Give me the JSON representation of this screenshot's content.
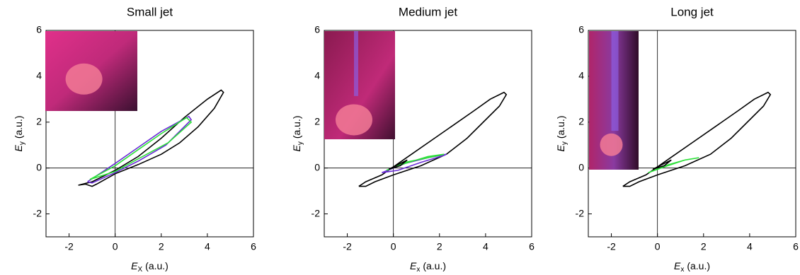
{
  "chart_data": [
    {
      "type": "line",
      "title": "Small jet",
      "xlabel": {
        "symbol": "E",
        "subscript": "X",
        "unit": "(a.u.)"
      },
      "ylabel": {
        "symbol": "E",
        "subscript": "y",
        "unit": "(a.u.)"
      },
      "xlim": [
        -3,
        6
      ],
      "ylim": [
        -3,
        6
      ],
      "xticks": [
        -2,
        0,
        2,
        4,
        6
      ],
      "yticks": [
        -2,
        0,
        2,
        4,
        6
      ],
      "series": [
        {
          "color": "#000000",
          "x": [
            -1.6,
            -1,
            0,
            1,
            2,
            3,
            4,
            4.6,
            4.7,
            4.3,
            3.6,
            2.8,
            2,
            1,
            0,
            -0.8,
            -1,
            -1.3,
            -1.6
          ],
          "values": [
            -0.75,
            -0.6,
            -0.1,
            0.5,
            1.3,
            2.2,
            3.0,
            3.4,
            3.3,
            2.6,
            1.8,
            1.1,
            0.6,
            0.15,
            -0.25,
            -0.7,
            -0.8,
            -0.7,
            -0.75
          ]
        },
        {
          "color": "#6a2bd6",
          "x": [
            -1.2,
            0,
            1,
            2,
            3.2,
            3.3,
            2.2,
            1,
            0,
            -1,
            -1.2
          ],
          "values": [
            -0.6,
            0.2,
            0.9,
            1.6,
            2.25,
            2.1,
            1.0,
            0.3,
            -0.2,
            -0.65,
            -0.6
          ]
        },
        {
          "color": "#2ee03a",
          "x": [
            -1.1,
            0,
            1,
            2,
            3.1,
            3.3,
            2.3,
            1,
            0,
            -1.1
          ],
          "values": [
            -0.5,
            0.1,
            0.8,
            1.5,
            2.2,
            2.0,
            1.1,
            0.4,
            -0.15,
            -0.5
          ]
        }
      ]
    },
    {
      "type": "line",
      "title": "Medium jet",
      "xlabel": {
        "symbol": "E",
        "subscript": "x",
        "unit": "(a.u.)"
      },
      "ylabel": {
        "symbol": "E",
        "subscript": "y",
        "unit": "(a.u.)"
      },
      "xlim": [
        -3,
        6
      ],
      "ylim": [
        -3,
        6
      ],
      "xticks": [
        -2,
        0,
        2,
        4,
        6
      ],
      "yticks": [
        -2,
        0,
        2,
        4,
        6
      ],
      "series": [
        {
          "color": "#000000",
          "x": [
            -1.5,
            -1.2,
            -0.5,
            0.5,
            1.5,
            2.5,
            3.5,
            4.2,
            4.8,
            4.9,
            4.6,
            4,
            3.2,
            2.3,
            1.2,
            0,
            -0.8,
            -1.2,
            -1.5
          ],
          "values": [
            -0.8,
            -0.6,
            -0.3,
            0.4,
            1.1,
            1.8,
            2.5,
            3.0,
            3.3,
            3.2,
            2.7,
            2.1,
            1.3,
            0.6,
            0.1,
            -0.3,
            -0.6,
            -0.8,
            -0.8
          ]
        },
        {
          "color": "#6a2bd6",
          "x": [
            -0.5,
            0.5,
            1.5,
            2.3,
            2.2,
            1.2,
            0.2,
            -0.5
          ],
          "values": [
            -0.2,
            0.2,
            0.45,
            0.6,
            0.55,
            0.25,
            -0.1,
            -0.2
          ]
        },
        {
          "color": "#2ee03a",
          "x": [
            -0.3,
            0.5,
            1.5,
            2.2,
            1.5,
            0.5,
            -0.3
          ],
          "values": [
            -0.1,
            0.25,
            0.45,
            0.6,
            0.5,
            0.2,
            -0.1
          ]
        },
        {
          "color": "#000000",
          "x": [
            -0.2,
            0.6,
            0.3,
            -0.2
          ],
          "values": [
            -0.05,
            0.35,
            0.1,
            -0.05
          ]
        }
      ]
    },
    {
      "type": "line",
      "title": "Long jet",
      "xlabel": {
        "symbol": "E",
        "subscript": "x",
        "unit": "(a.u.)"
      },
      "ylabel": {
        "symbol": "E",
        "subscript": "y",
        "unit": "(a.u.)"
      },
      "xlim": [
        -3,
        6
      ],
      "ylim": [
        -3,
        6
      ],
      "xticks": [
        -2,
        0,
        2,
        4,
        6
      ],
      "yticks": [
        -2,
        0,
        2,
        4,
        6
      ],
      "series": [
        {
          "color": "#000000",
          "x": [
            -1.5,
            -1.2,
            -0.5,
            0.5,
            1.5,
            2.5,
            3.5,
            4.2,
            4.8,
            4.9,
            4.6,
            4,
            3.2,
            2.3,
            1.2,
            0,
            -0.8,
            -1.2,
            -1.5
          ],
          "values": [
            -0.8,
            -0.6,
            -0.3,
            0.4,
            1.1,
            1.8,
            2.5,
            3.0,
            3.3,
            3.2,
            2.7,
            2.1,
            1.3,
            0.6,
            0.1,
            -0.3,
            -0.6,
            -0.8,
            -0.8
          ]
        },
        {
          "color": "#2ee03a",
          "x": [
            -0.4,
            0.5,
            1.2,
            1.8,
            1.2,
            0.3,
            -0.4
          ],
          "values": [
            -0.2,
            0.15,
            0.35,
            0.45,
            0.35,
            0.05,
            -0.2
          ]
        },
        {
          "color": "#000000",
          "x": [
            -0.2,
            0.6,
            0.3,
            -0.2
          ],
          "values": [
            -0.05,
            0.35,
            0.1,
            -0.05
          ]
        }
      ]
    }
  ]
}
